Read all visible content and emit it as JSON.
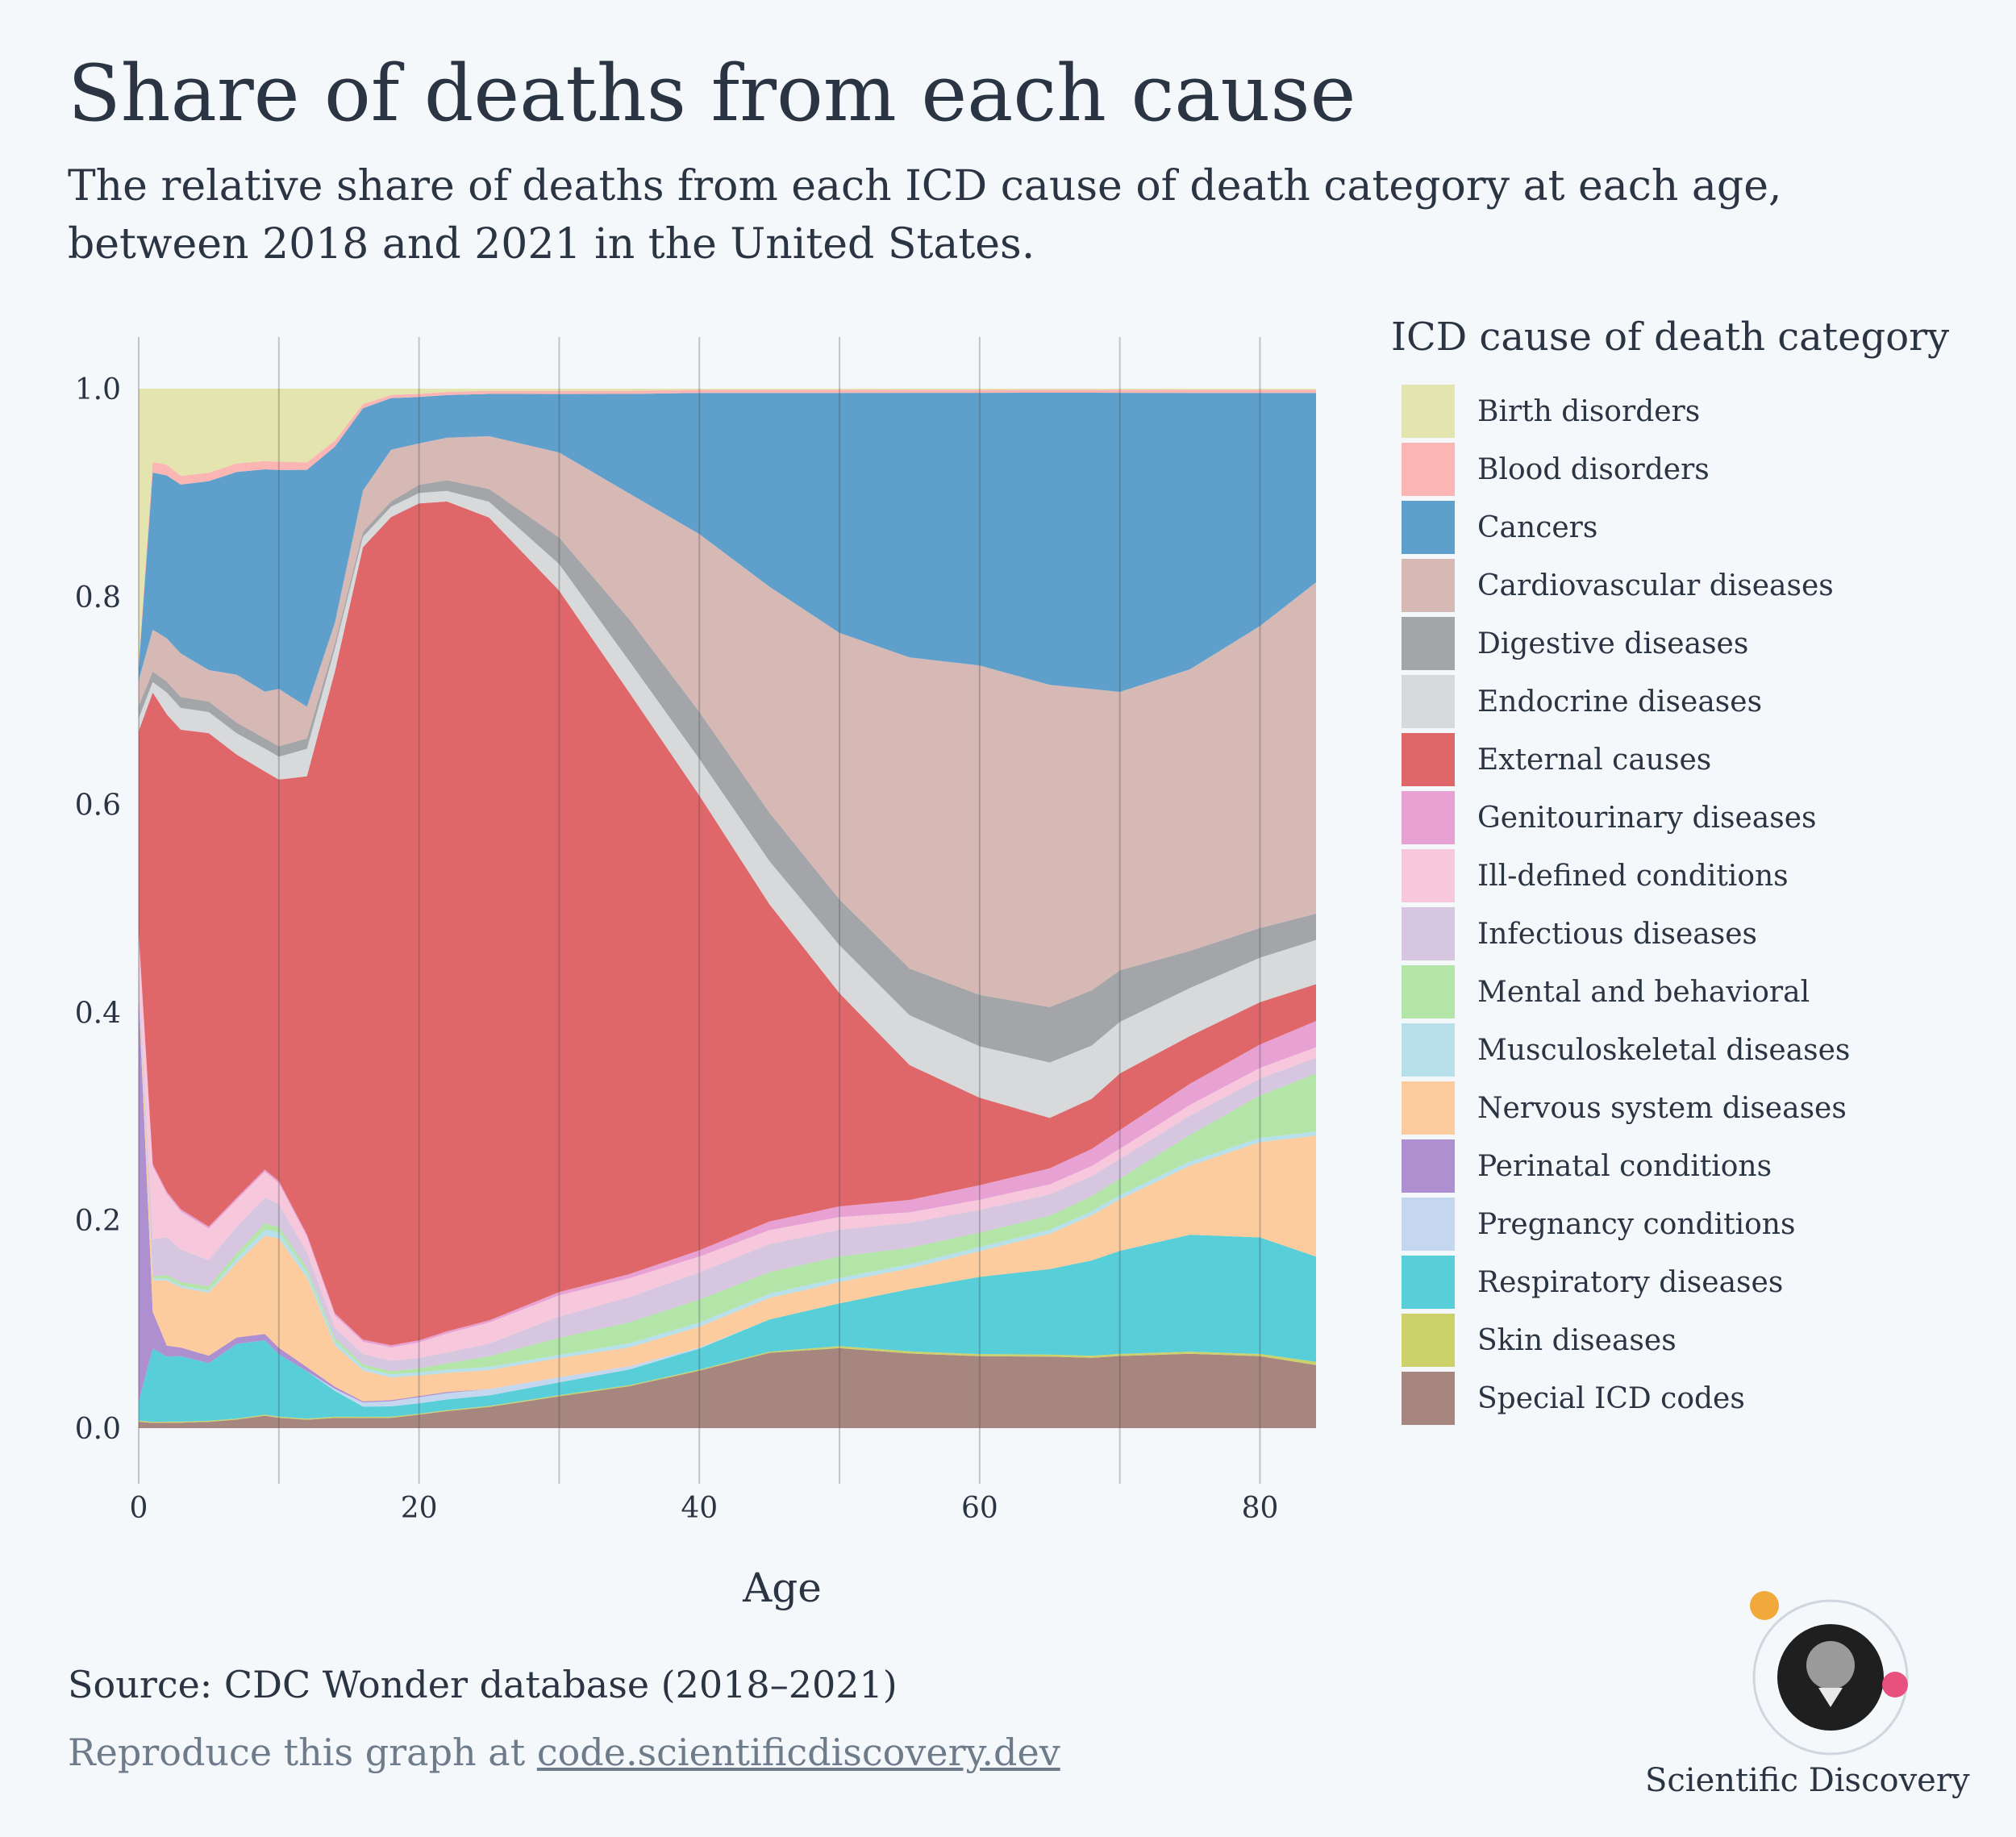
{
  "title": "Share of deaths from each cause",
  "subtitle": "The relative share of deaths from each ICD cause of death category at each age, between 2018 and 2021 in the United States.",
  "source": "Source: CDC Wonder database (2018–2021)",
  "reproduce": {
    "prefix": "Reproduce this graph at ",
    "link": "code.scientificdiscovery.dev"
  },
  "brand": "Scientific Discovery",
  "chart_data": {
    "type": "area",
    "stacked": true,
    "normalized": true,
    "xlabel": "Age",
    "ylabel": "",
    "xlim": [
      0,
      84
    ],
    "ylim": [
      0,
      1
    ],
    "xticks": [
      0,
      20,
      40,
      60,
      80
    ],
    "yticks": [
      0.0,
      0.2,
      0.4,
      0.6,
      0.8,
      1.0
    ],
    "ytick_labels": [
      "0.0",
      "0.2",
      "0.4",
      "0.6",
      "0.8",
      "1.0"
    ],
    "grid": "vertical every 10 years",
    "legend_title": "ICD cause of death category",
    "legend_position": "right",
    "x": [
      0,
      1,
      2,
      3,
      5,
      7,
      9,
      10,
      12,
      14,
      16,
      18,
      20,
      22,
      25,
      30,
      35,
      40,
      45,
      50,
      55,
      60,
      65,
      68,
      70,
      75,
      80,
      84
    ],
    "series": [
      {
        "name": "Special ICD codes",
        "color": "#a88680",
        "values": [
          0.005,
          0.005,
          0.005,
          0.005,
          0.006,
          0.008,
          0.012,
          0.01,
          0.008,
          0.01,
          0.01,
          0.01,
          0.013,
          0.016,
          0.02,
          0.03,
          0.04,
          0.055,
          0.07,
          0.075,
          0.072,
          0.07,
          0.071,
          0.07,
          0.07,
          0.07,
          0.068,
          0.06
        ]
      },
      {
        "name": "Skin diseases",
        "color": "#cdd16a",
        "values": [
          0.001,
          0.001,
          0.001,
          0.001,
          0.001,
          0.001,
          0.001,
          0.001,
          0.001,
          0.001,
          0.001,
          0.001,
          0.001,
          0.001,
          0.001,
          0.001,
          0.001,
          0.001,
          0.001,
          0.002,
          0.002,
          0.002,
          0.002,
          0.002,
          0.002,
          0.002,
          0.002,
          0.003
        ]
      },
      {
        "name": "Respiratory diseases",
        "color": "#58ced8",
        "values": [
          0.015,
          0.07,
          0.06,
          0.06,
          0.055,
          0.07,
          0.072,
          0.06,
          0.045,
          0.025,
          0.01,
          0.01,
          0.01,
          0.01,
          0.01,
          0.012,
          0.015,
          0.02,
          0.03,
          0.04,
          0.06,
          0.075,
          0.085,
          0.095,
          0.1,
          0.11,
          0.11,
          0.1
        ]
      },
      {
        "name": "Pregnancy conditions",
        "color": "#c5d7ee",
        "values": [
          0.0,
          0.0,
          0.0,
          0.0,
          0.0,
          0.0,
          0.0,
          0.0,
          0.0,
          0.002,
          0.004,
          0.005,
          0.006,
          0.006,
          0.006,
          0.005,
          0.003,
          0.001,
          0.0,
          0.0,
          0.0,
          0.0,
          0.0,
          0.0,
          0.0,
          0.0,
          0.0,
          0.0
        ]
      },
      {
        "name": "Perinatal conditions",
        "color": "#ae8fd0",
        "values": [
          0.32,
          0.035,
          0.01,
          0.008,
          0.007,
          0.006,
          0.006,
          0.006,
          0.004,
          0.002,
          0.001,
          0.001,
          0.001,
          0.001,
          0.0,
          0.0,
          0.0,
          0.0,
          0.0,
          0.0,
          0.0,
          0.0,
          0.0,
          0.0,
          0.0,
          0.0,
          0.0,
          0.0
        ]
      },
      {
        "name": "Nervous system diseases",
        "color": "#fccc9e",
        "values": [
          0.005,
          0.03,
          0.06,
          0.055,
          0.06,
          0.07,
          0.095,
          0.105,
          0.085,
          0.04,
          0.03,
          0.022,
          0.02,
          0.018,
          0.018,
          0.018,
          0.018,
          0.02,
          0.02,
          0.02,
          0.02,
          0.025,
          0.035,
          0.045,
          0.05,
          0.065,
          0.09,
          0.115
        ]
      },
      {
        "name": "Musculoskeletal diseases",
        "color": "#b8e0ea",
        "values": [
          0.001,
          0.002,
          0.002,
          0.002,
          0.002,
          0.004,
          0.006,
          0.006,
          0.005,
          0.004,
          0.003,
          0.003,
          0.003,
          0.003,
          0.003,
          0.003,
          0.004,
          0.004,
          0.004,
          0.004,
          0.004,
          0.004,
          0.004,
          0.004,
          0.004,
          0.004,
          0.004,
          0.004
        ]
      },
      {
        "name": "Mental and behavioral",
        "color": "#b3e4a8",
        "values": [
          0.001,
          0.002,
          0.003,
          0.003,
          0.004,
          0.005,
          0.006,
          0.005,
          0.004,
          0.003,
          0.003,
          0.003,
          0.004,
          0.006,
          0.01,
          0.016,
          0.02,
          0.022,
          0.02,
          0.02,
          0.016,
          0.014,
          0.014,
          0.015,
          0.016,
          0.025,
          0.04,
          0.055
        ]
      },
      {
        "name": "Infectious diseases",
        "color": "#d6c6df",
        "values": [
          0.01,
          0.035,
          0.035,
          0.03,
          0.025,
          0.025,
          0.025,
          0.022,
          0.015,
          0.01,
          0.01,
          0.01,
          0.01,
          0.01,
          0.012,
          0.02,
          0.024,
          0.026,
          0.026,
          0.025,
          0.024,
          0.022,
          0.021,
          0.02,
          0.019,
          0.018,
          0.016,
          0.015
        ]
      },
      {
        "name": "Ill-defined conditions",
        "color": "#f7c7dc",
        "values": [
          0.03,
          0.07,
          0.04,
          0.035,
          0.03,
          0.025,
          0.025,
          0.02,
          0.015,
          0.012,
          0.012,
          0.013,
          0.015,
          0.018,
          0.02,
          0.02,
          0.018,
          0.015,
          0.013,
          0.012,
          0.01,
          0.01,
          0.01,
          0.01,
          0.01,
          0.01,
          0.01,
          0.01
        ]
      },
      {
        "name": "Genitourinary diseases",
        "color": "#e8a1d3",
        "values": [
          0.002,
          0.002,
          0.002,
          0.002,
          0.002,
          0.002,
          0.002,
          0.002,
          0.002,
          0.002,
          0.002,
          0.002,
          0.002,
          0.002,
          0.002,
          0.003,
          0.004,
          0.006,
          0.008,
          0.01,
          0.012,
          0.014,
          0.016,
          0.017,
          0.018,
          0.02,
          0.022,
          0.025
        ]
      },
      {
        "name": "External causes",
        "color": "#e06769",
        "values": [
          0.16,
          0.45,
          0.44,
          0.44,
          0.47,
          0.415,
          0.385,
          0.385,
          0.435,
          0.62,
          0.77,
          0.8,
          0.81,
          0.78,
          0.76,
          0.66,
          0.555,
          0.435,
          0.295,
          0.2,
          0.13,
          0.085,
          0.05,
          0.05,
          0.055,
          0.045,
          0.04,
          0.035
        ]
      },
      {
        "name": "Endocrine diseases",
        "color": "#d7d9da",
        "values": [
          0.01,
          0.01,
          0.02,
          0.02,
          0.02,
          0.02,
          0.022,
          0.022,
          0.026,
          0.022,
          0.01,
          0.01,
          0.01,
          0.01,
          0.015,
          0.025,
          0.03,
          0.035,
          0.04,
          0.045,
          0.048,
          0.05,
          0.055,
          0.053,
          0.05,
          0.045,
          0.042,
          0.042
        ]
      },
      {
        "name": "Digestive diseases",
        "color": "#a3a5a8",
        "values": [
          0.01,
          0.01,
          0.01,
          0.01,
          0.01,
          0.01,
          0.01,
          0.01,
          0.01,
          0.005,
          0.005,
          0.005,
          0.008,
          0.01,
          0.012,
          0.025,
          0.04,
          0.045,
          0.045,
          0.043,
          0.045,
          0.05,
          0.055,
          0.055,
          0.05,
          0.035,
          0.028,
          0.025
        ]
      },
      {
        "name": "Cardiovascular diseases",
        "color": "#d6b8b4",
        "values": [
          0.02,
          0.04,
          0.04,
          0.04,
          0.03,
          0.045,
          0.045,
          0.055,
          0.03,
          0.02,
          0.04,
          0.05,
          0.04,
          0.04,
          0.05,
          0.08,
          0.12,
          0.17,
          0.21,
          0.25,
          0.3,
          0.32,
          0.32,
          0.3,
          0.27,
          0.265,
          0.285,
          0.315
        ]
      },
      {
        "name": "Cancers",
        "color": "#5ea0cb",
        "values": [
          0.01,
          0.15,
          0.15,
          0.155,
          0.18,
          0.19,
          0.215,
          0.21,
          0.225,
          0.17,
          0.08,
          0.05,
          0.045,
          0.04,
          0.04,
          0.055,
          0.095,
          0.135,
          0.18,
          0.225,
          0.255,
          0.265,
          0.29,
          0.295,
          0.29,
          0.26,
          0.22,
          0.18
        ]
      },
      {
        "name": "Blood disorders",
        "color": "#fbb6b4",
        "values": [
          0.005,
          0.01,
          0.01,
          0.008,
          0.008,
          0.008,
          0.008,
          0.008,
          0.007,
          0.006,
          0.004,
          0.003,
          0.003,
          0.003,
          0.003,
          0.003,
          0.003,
          0.003,
          0.003,
          0.003,
          0.003,
          0.003,
          0.003,
          0.003,
          0.003,
          0.003,
          0.003,
          0.003
        ]
      },
      {
        "name": "Birth disorders",
        "color": "#e4e4ae",
        "values": [
          0.215,
          0.07,
          0.07,
          0.08,
          0.08,
          0.07,
          0.07,
          0.07,
          0.07,
          0.05,
          0.015,
          0.006,
          0.005,
          0.003,
          0.002,
          0.002,
          0.002,
          0.001,
          0.001,
          0.001,
          0.001,
          0.001,
          0.001,
          0.001,
          0.001,
          0.001,
          0.001,
          0.001
        ]
      }
    ]
  }
}
